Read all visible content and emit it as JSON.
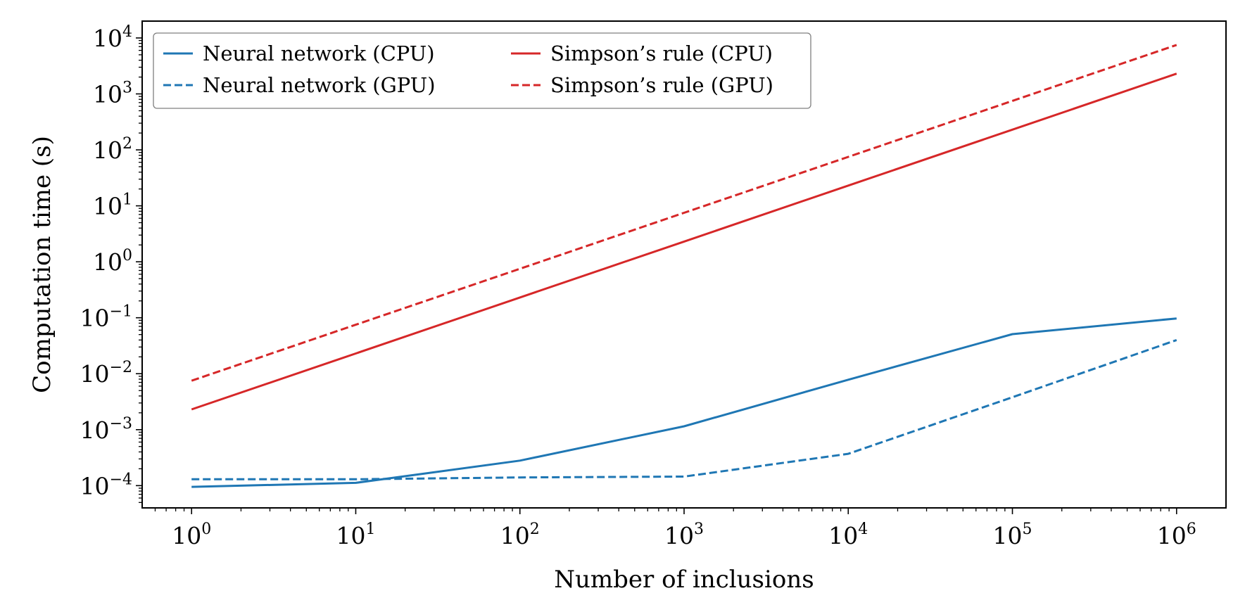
{
  "chart_data": {
    "type": "line",
    "title": "",
    "xlabel": "Number of inclusions",
    "ylabel": "Computation time (s)",
    "xscale": "log",
    "yscale": "log",
    "xlim": [
      0.5,
      2000000
    ],
    "ylim": [
      4e-05,
      20000
    ],
    "grid": false,
    "legend_position": "top-left",
    "legend_columns": 2,
    "x_ticks": [
      {
        "base": "10",
        "exp": "0",
        "value": 1
      },
      {
        "base": "10",
        "exp": "1",
        "value": 10
      },
      {
        "base": "10",
        "exp": "2",
        "value": 100
      },
      {
        "base": "10",
        "exp": "3",
        "value": 1000
      },
      {
        "base": "10",
        "exp": "4",
        "value": 10000
      },
      {
        "base": "10",
        "exp": "5",
        "value": 100000
      },
      {
        "base": "10",
        "exp": "6",
        "value": 1000000
      }
    ],
    "y_ticks": [
      {
        "base": "10",
        "exp": "−4",
        "value": 0.0001
      },
      {
        "base": "10",
        "exp": "−3",
        "value": 0.001
      },
      {
        "base": "10",
        "exp": "−2",
        "value": 0.01
      },
      {
        "base": "10",
        "exp": "−1",
        "value": 0.1
      },
      {
        "base": "10",
        "exp": "0",
        "value": 1
      },
      {
        "base": "10",
        "exp": "1",
        "value": 10
      },
      {
        "base": "10",
        "exp": "2",
        "value": 100
      },
      {
        "base": "10",
        "exp": "3",
        "value": 1000
      },
      {
        "base": "10",
        "exp": "4",
        "value": 10000
      }
    ],
    "x": [
      1,
      10,
      100,
      1000,
      10000,
      100000,
      1000000
    ],
    "series": [
      {
        "name": "Neural network (CPU)",
        "color": "#1f77b4",
        "dash": "solid",
        "values": [
          9.5e-05,
          0.000112,
          0.00028,
          0.00115,
          0.0078,
          0.051,
          0.097
        ]
      },
      {
        "name": "Neural network (GPU)",
        "color": "#1f77b4",
        "dash": "dashed",
        "values": [
          0.00013,
          0.00013,
          0.00014,
          0.000145,
          0.00037,
          0.0038,
          0.04
        ]
      },
      {
        "name": "Simpson’s rule (CPU)",
        "color": "#d62728",
        "dash": "solid",
        "values": [
          0.0023,
          0.023,
          0.23,
          2.3,
          23,
          230,
          2300
        ]
      },
      {
        "name": "Simpson’s rule (GPU)",
        "color": "#d62728",
        "dash": "dashed",
        "values": [
          0.0075,
          0.075,
          0.75,
          7.5,
          75,
          750,
          7500
        ]
      }
    ]
  }
}
